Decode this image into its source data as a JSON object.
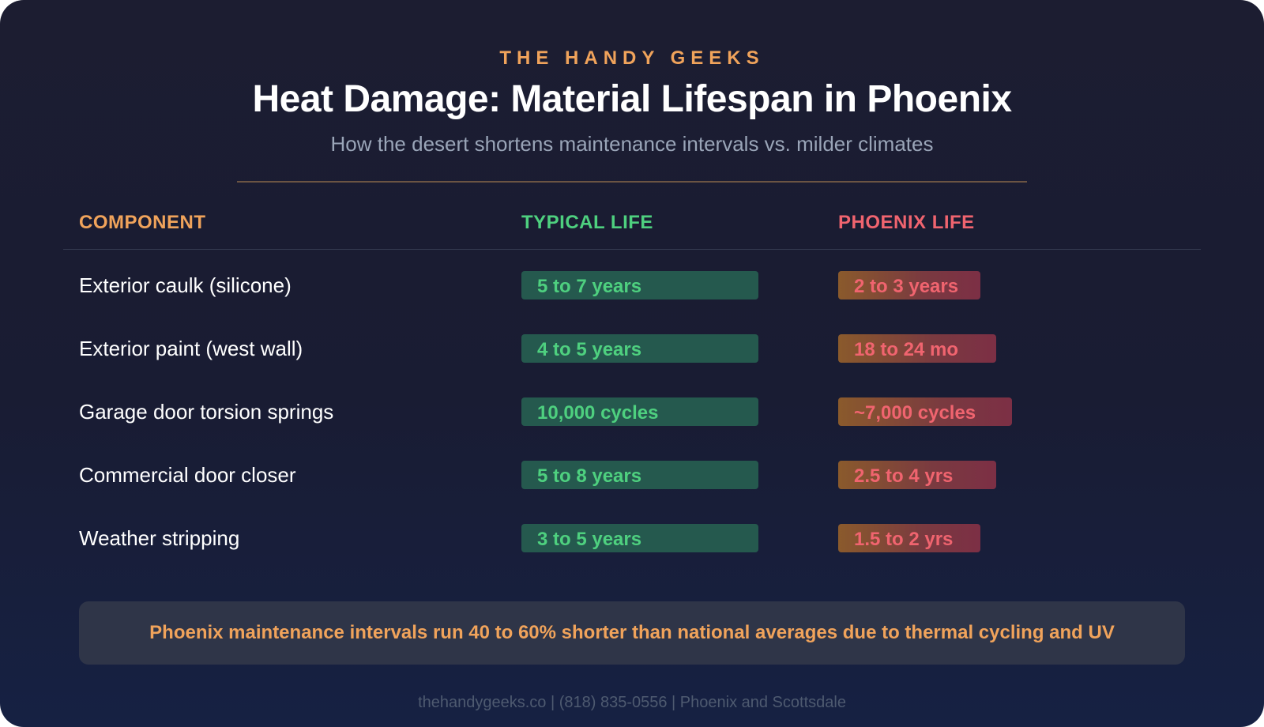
{
  "brand": "THE HANDY GEEKS",
  "title": "Heat Damage: Material Lifespan in Phoenix",
  "subtitle": "How the desert shortens maintenance intervals vs. milder climates",
  "table": {
    "headers": {
      "component": "COMPONENT",
      "typical": "TYPICAL LIFE",
      "phoenix": "PHOENIX LIFE"
    },
    "colors": {
      "component_header": "#f0a35b",
      "typical": "#4ed07f",
      "phoenix": "#f0646f"
    },
    "rows": [
      {
        "component": "Exterior caulk (silicone)",
        "typical": "5 to 7 years",
        "phoenix": "2 to 3 years"
      },
      {
        "component": "Exterior paint (west wall)",
        "typical": "4 to 5 years",
        "phoenix": "18 to 24 mo"
      },
      {
        "component": "Garage door torsion springs",
        "typical": "10,000 cycles",
        "phoenix": "~7,000 cycles"
      },
      {
        "component": "Commercial door closer",
        "typical": "5 to 8 years",
        "phoenix": "2.5 to 4 yrs"
      },
      {
        "component": "Weather stripping",
        "typical": "3 to 5 years",
        "phoenix": "1.5 to 2 yrs"
      }
    ]
  },
  "note": "Phoenix maintenance intervals run 40 to 60% shorter than national averages due to thermal cycling and UV",
  "footer": "thehandygeeks.co | (818) 835-0556 | Phoenix and Scottsdale"
}
